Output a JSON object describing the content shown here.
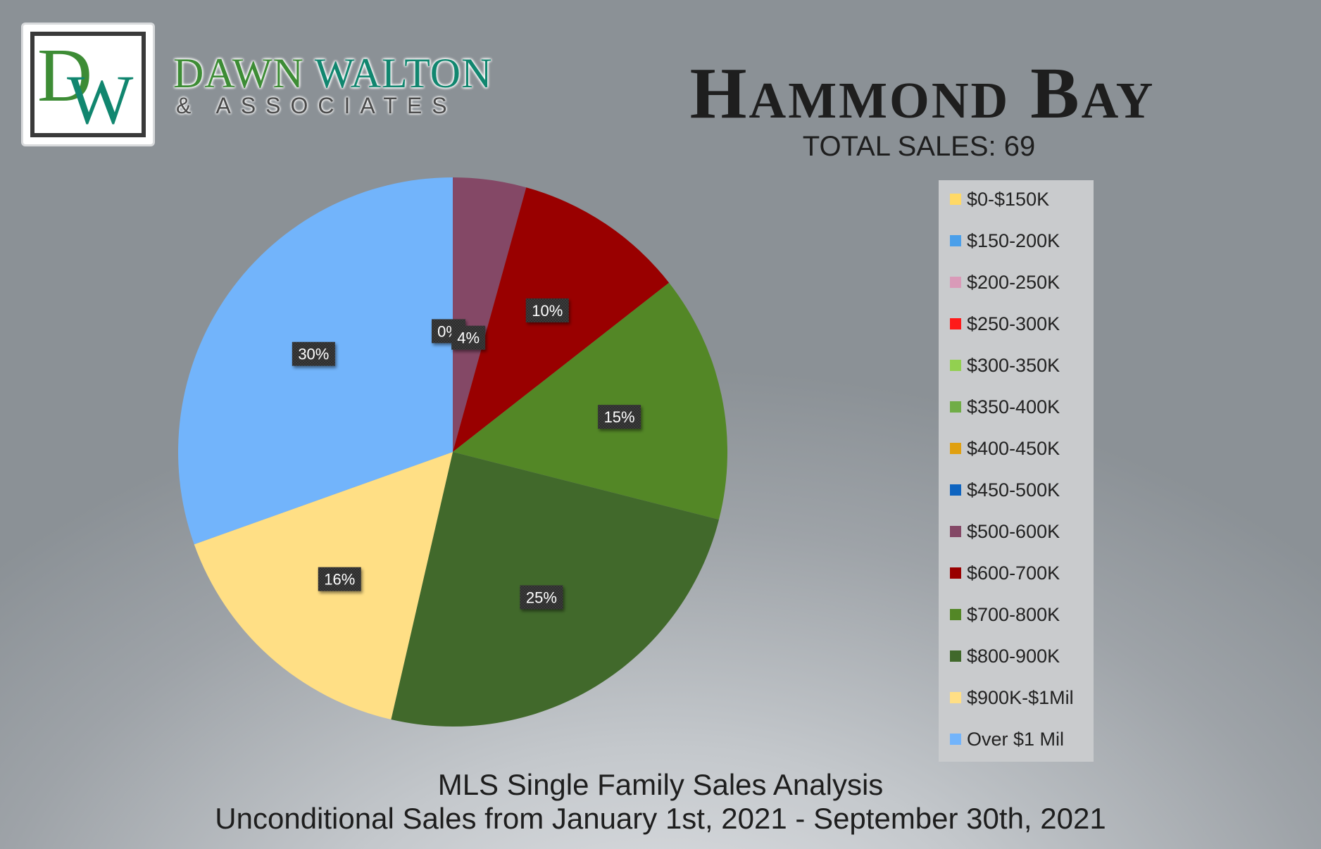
{
  "brand": {
    "logo_d": "D",
    "logo_w": "W",
    "name_first": "DAWN",
    "name_last": "WALTON",
    "sub": "& ASSOCIATES",
    "colors": {
      "green": "#3d8c35",
      "teal": "#11866f"
    }
  },
  "header": {
    "title": "Hammond Bay",
    "total_sales": "TOTAL SALES: 69"
  },
  "footer": {
    "line1": "MLS Single Family Sales Analysis",
    "line2": "Unconditional Sales from January 1st, 2021 - September 30th, 2021"
  },
  "chart_data": {
    "type": "pie",
    "title": "Hammond Bay",
    "start_direction": "12 o'clock, clockwise",
    "legend_position": "right",
    "slices": [
      {
        "label": "$0-$150K",
        "value": 0,
        "color": "#ffd966",
        "data_label": ""
      },
      {
        "label": "$150-200K",
        "value": 0,
        "color": "#4a9fea",
        "data_label": ""
      },
      {
        "label": "$200-250K",
        "value": 0,
        "color": "#d99ab8",
        "data_label": ""
      },
      {
        "label": "$250-300K",
        "value": 0,
        "color": "#ff1a1a",
        "data_label": ""
      },
      {
        "label": "$300-350K",
        "value": 0,
        "color": "#92d050",
        "data_label": ""
      },
      {
        "label": "$350-400K",
        "value": 0,
        "color": "#70ad47",
        "data_label": ""
      },
      {
        "label": "$400-450K",
        "value": 0,
        "color": "#e0a010",
        "data_label": ""
      },
      {
        "label": "$450-500K",
        "value": 0,
        "color": "#0e64c0",
        "data_label": "0%"
      },
      {
        "label": "$500-600K",
        "value": 4.3,
        "color": "#844866",
        "data_label": "4%"
      },
      {
        "label": "$600-700K",
        "value": 10.1,
        "color": "#990000",
        "data_label": "10%"
      },
      {
        "label": "$700-800K",
        "value": 14.5,
        "color": "#538726",
        "data_label": "15%"
      },
      {
        "label": "$800-900K",
        "value": 24.6,
        "color": "#41692b",
        "data_label": "25%"
      },
      {
        "label": "$900K-$1Mil",
        "value": 15.9,
        "color": "#ffdf85",
        "data_label": "16%"
      },
      {
        "label": "Over $1 Mil",
        "value": 30.4,
        "color": "#72b4fb",
        "data_label": "30%"
      }
    ]
  }
}
